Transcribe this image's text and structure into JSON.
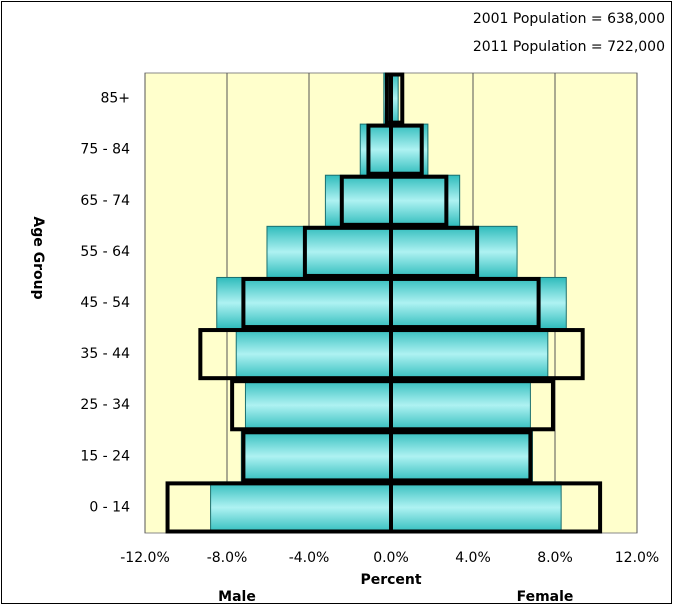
{
  "chart_data": {
    "type": "pyramid",
    "annotations": [
      "2001 Population = 638,000",
      "2011 Population = 722,000"
    ],
    "x_label": "Percent",
    "y_label": "Age Group",
    "left_label": "Male",
    "right_label": "Female",
    "categories": [
      "0 - 14",
      "15 - 24",
      "25 - 34",
      "35 - 44",
      "45 - 54",
      "55 - 64",
      "65 - 74",
      "75 - 84",
      "85+"
    ],
    "series": [
      {
        "color": "#33cccc",
        "outline": false,
        "values": [
          -8.8,
          -7.3,
          -7.1,
          -7.55,
          -8.5,
          -6.05,
          -3.2,
          -1.5,
          -0.35
        ]
      },
      {
        "color": "#33cccc",
        "outline": false,
        "values": [
          8.3,
          6.9,
          6.8,
          7.65,
          8.55,
          6.15,
          3.35,
          1.8,
          0.35
        ]
      },
      {
        "color": "#000000",
        "outline": true,
        "values": [
          -10.9,
          -7.2,
          -7.75,
          -9.3,
          -7.2,
          -4.2,
          -2.4,
          -1.1,
          -0.2
        ]
      },
      {
        "color": "#000000",
        "outline": true,
        "values": [
          10.2,
          6.8,
          7.9,
          9.35,
          7.2,
          4.2,
          2.7,
          1.5,
          0.55
        ]
      }
    ],
    "xlim": [
      -12,
      12
    ],
    "xticks": [
      {
        "value": -12,
        "label": "-12.0%"
      },
      {
        "value": -8,
        "label": "-8.0%"
      },
      {
        "value": -4,
        "label": "-4.0%"
      },
      {
        "value": 0,
        "label": "0.0%"
      },
      {
        "value": 4,
        "label": "4.0%"
      },
      {
        "value": 8,
        "label": "8.0%"
      },
      {
        "value": 12,
        "label": "12.0%"
      }
    ],
    "grid": true,
    "plot_background": "#ffffcc"
  }
}
